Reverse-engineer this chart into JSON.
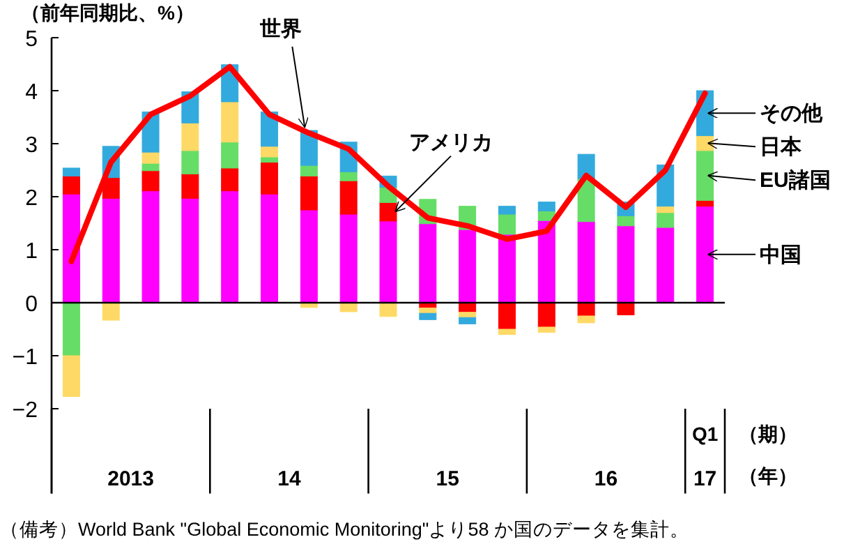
{
  "chart_data": {
    "type": "bar",
    "stacked": true,
    "ylabel": "（前年同期比、%）",
    "categories": [
      null,
      null,
      null,
      null,
      null,
      null,
      null,
      null,
      null,
      null,
      null,
      null,
      null,
      null,
      null,
      null,
      "Q1"
    ],
    "ylim": [
      -3.6,
      5
    ],
    "yticks": [
      -2,
      -1,
      0,
      1,
      2,
      3,
      4,
      5
    ],
    "grid": false,
    "legend": false,
    "ref_lines": [
      {
        "axis": "y",
        "value": 0,
        "color": "#000000"
      }
    ],
    "series": [
      {
        "name": "中国",
        "color": "#ff00ff",
        "values": [
          2.05,
          1.97,
          2.11,
          1.97,
          2.11,
          2.05,
          1.75,
          1.67,
          1.54,
          1.49,
          1.38,
          1.29,
          1.55,
          1.53,
          1.45,
          1.42,
          1.82
        ]
      },
      {
        "name": "アメリカ",
        "color": "#ff0000",
        "values": [
          0.34,
          0.39,
          0.38,
          0.46,
          0.43,
          0.6,
          0.64,
          0.63,
          0.35,
          -0.1,
          -0.18,
          -0.5,
          -0.46,
          -0.25,
          -0.23,
          0,
          0.11
        ]
      },
      {
        "name": "EU諸国",
        "color": "#66dd66",
        "values": [
          -1.0,
          0,
          0.14,
          0.44,
          0.49,
          0.1,
          0.2,
          0.17,
          0.29,
          0.46,
          0.44,
          0.38,
          0.18,
          0.81,
          0.19,
          0.28,
          0.94
        ]
      },
      {
        "name": "日本",
        "color": "#ffd966",
        "values": [
          -0.77,
          -0.33,
          0.21,
          0.52,
          0.76,
          0.2,
          -0.09,
          -0.17,
          -0.26,
          -0.1,
          -0.1,
          -0.1,
          -0.1,
          -0.13,
          0,
          0.12,
          0.28
        ]
      },
      {
        "name": "その他",
        "color": "#33aadd",
        "values": [
          0.15,
          0.59,
          0.76,
          0.59,
          0.7,
          0.65,
          0.66,
          0.56,
          0.21,
          -0.12,
          -0.12,
          0.15,
          0.17,
          0.46,
          0.26,
          0.78,
          0.85
        ]
      },
      {
        "name": "世界",
        "type": "line",
        "color": "#ff0000",
        "marker": "none",
        "values": [
          0.78,
          2.65,
          3.55,
          3.9,
          4.45,
          3.55,
          3.2,
          2.9,
          2.2,
          1.6,
          1.45,
          1.2,
          1.35,
          2.4,
          1.8,
          2.5,
          3.95
        ]
      }
    ],
    "annotations": [
      "2013",
      "14",
      "15",
      "16",
      "17",
      "（期）",
      "（年）",
      "（備考）World Bank \"Global Economic Monitoring\"より58 か国のデータを集計。"
    ]
  }
}
